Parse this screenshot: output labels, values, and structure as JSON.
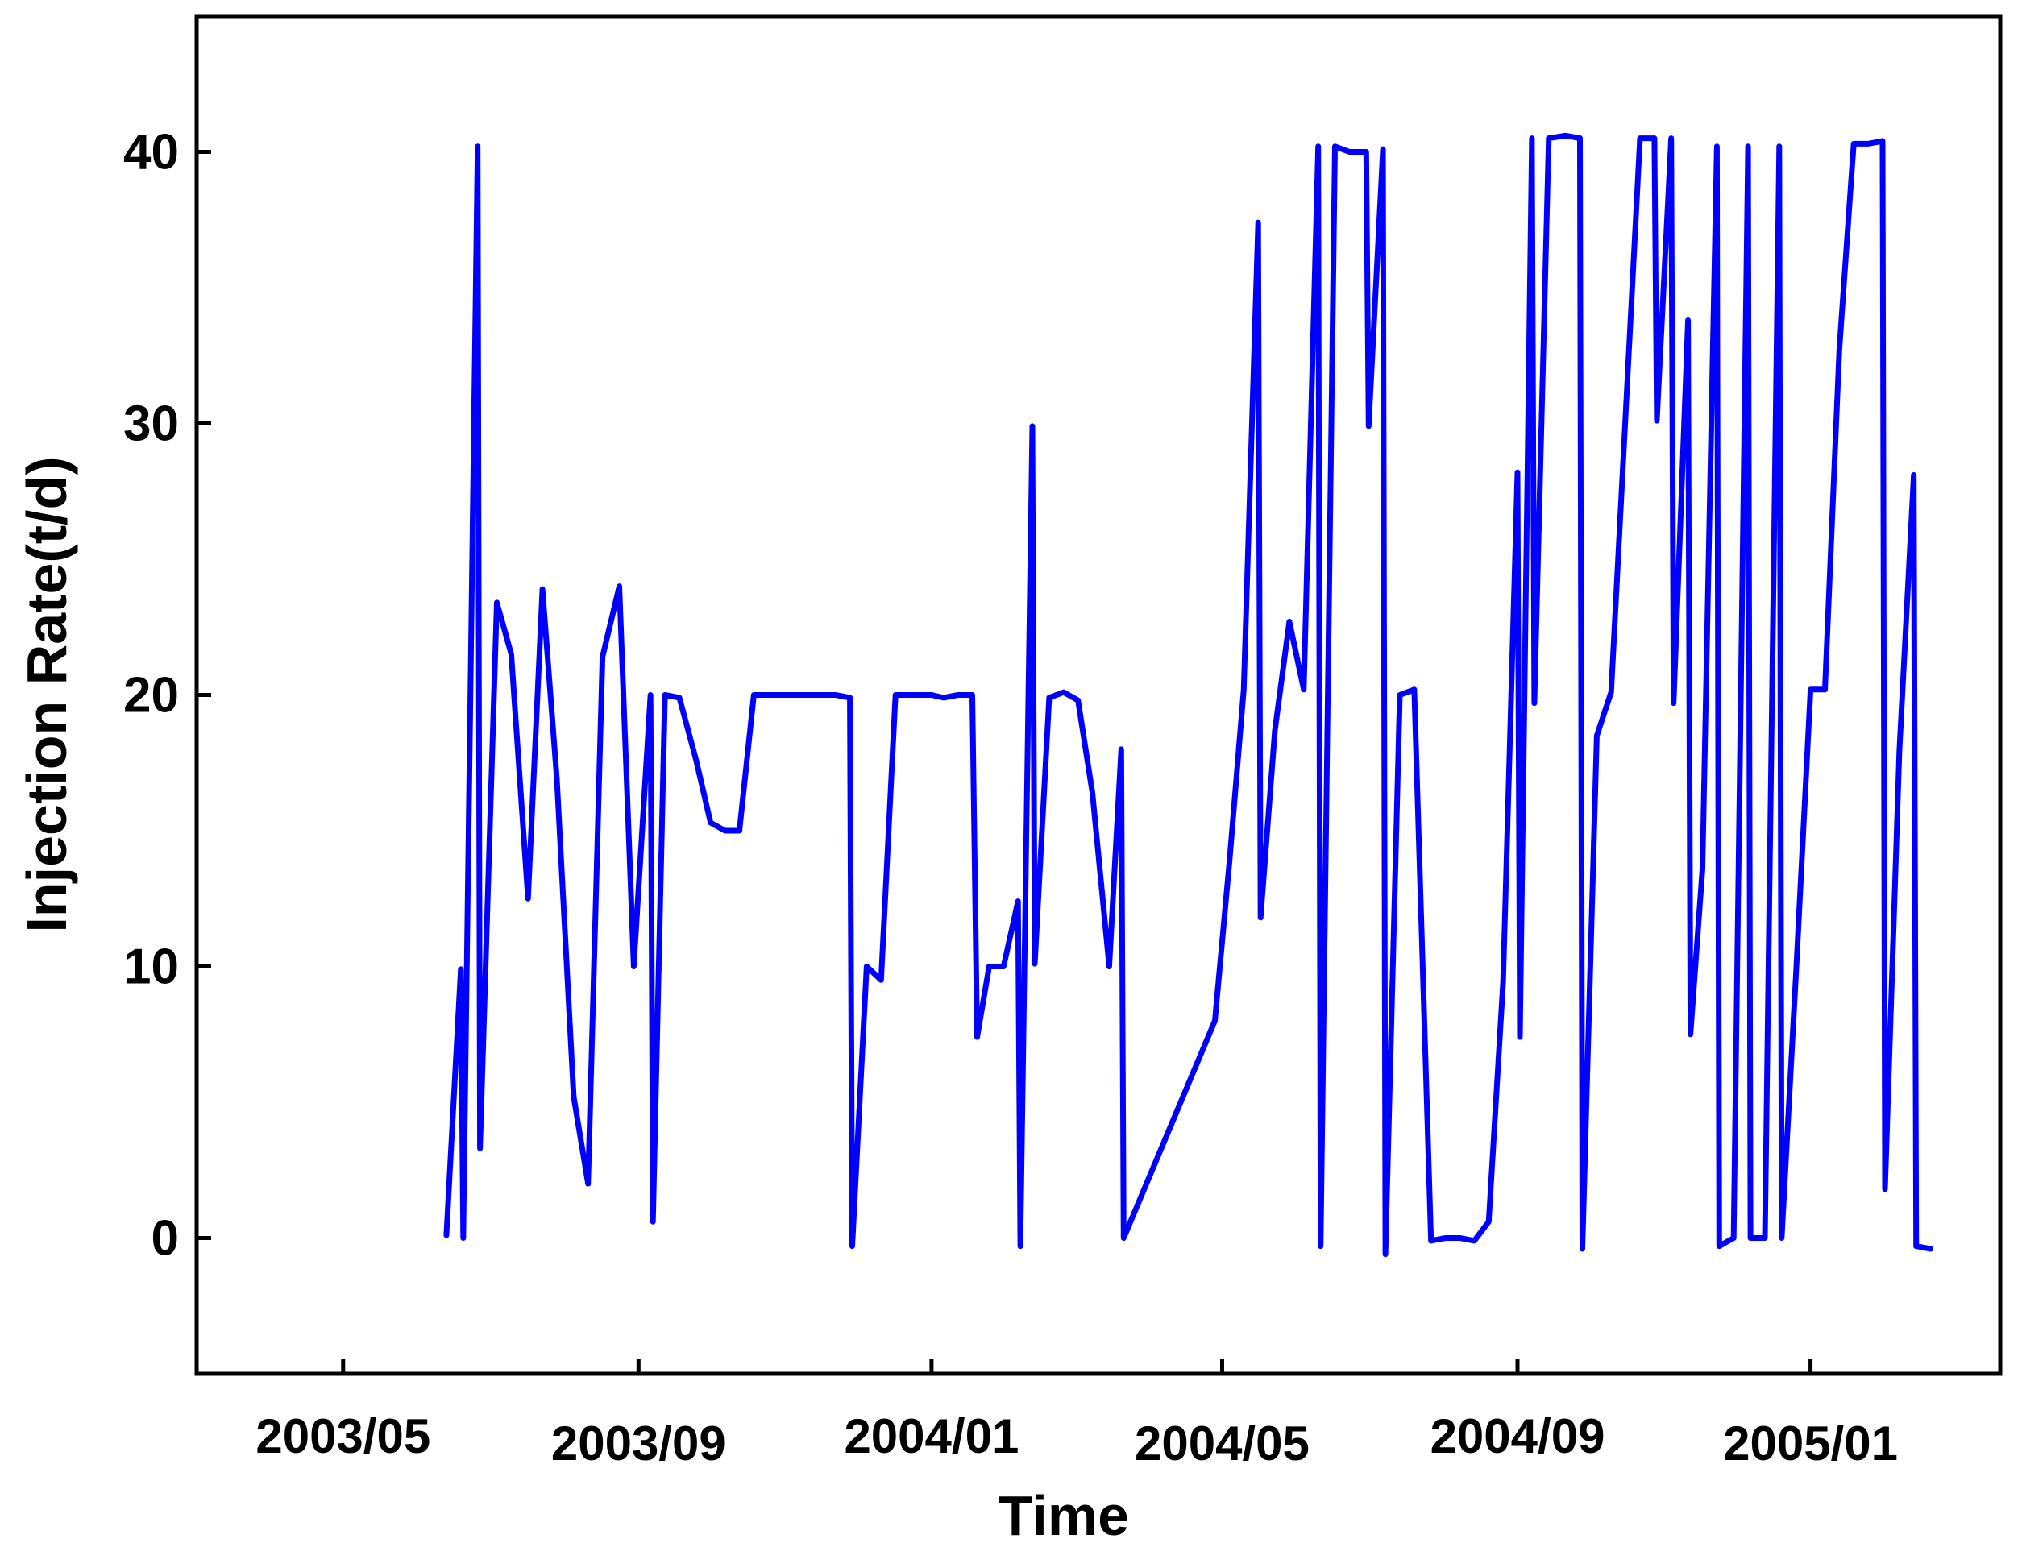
{
  "chart_data": {
    "type": "line",
    "title": "",
    "xlabel": "Time",
    "ylabel": "Injection Rate(t/d)",
    "ylim": [
      -5,
      45
    ],
    "xlim": [
      "2003-03-01",
      "2005-03-21"
    ],
    "grid": false,
    "y_ticks": [
      0,
      10,
      20,
      30,
      40
    ],
    "x_ticks": [
      {
        "date": "2003-05-01",
        "label": "2003/05"
      },
      {
        "date": "2003-09-01",
        "label": "2003/09"
      },
      {
        "date": "2004-01-01",
        "label": "2004/01"
      },
      {
        "date": "2004-05-01",
        "label": "2004/05"
      },
      {
        "date": "2004-09-01",
        "label": "2004/09"
      },
      {
        "date": "2005-01-01",
        "label": "2005/01"
      }
    ],
    "series": [
      {
        "color": "#0000ff",
        "points": [
          [
            "2003-06-13",
            0.1
          ],
          [
            "2003-06-19",
            9.9
          ],
          [
            "2003-06-20",
            0.0
          ],
          [
            "2003-06-26",
            40.2
          ],
          [
            "2003-06-27",
            3.3
          ],
          [
            "2003-07-04",
            23.4
          ],
          [
            "2003-07-10",
            21.5
          ],
          [
            "2003-07-17",
            12.5
          ],
          [
            "2003-07-23",
            23.9
          ],
          [
            "2003-07-29",
            16.9
          ],
          [
            "2003-08-05",
            5.2
          ],
          [
            "2003-08-11",
            2.0
          ],
          [
            "2003-08-17",
            21.4
          ],
          [
            "2003-08-24",
            24.0
          ],
          [
            "2003-08-30",
            10.0
          ],
          [
            "2003-09-06",
            20.0
          ],
          [
            "2003-09-07",
            0.6
          ],
          [
            "2003-09-12",
            20.0
          ],
          [
            "2003-09-18",
            19.9
          ],
          [
            "2003-09-25",
            17.6
          ],
          [
            "2003-10-01",
            15.3
          ],
          [
            "2003-10-07",
            15.0
          ],
          [
            "2003-10-13",
            15.0
          ],
          [
            "2003-10-19",
            20.0
          ],
          [
            "2003-11-22",
            20.0
          ],
          [
            "2003-11-28",
            19.9
          ],
          [
            "2003-11-29",
            -0.3
          ],
          [
            "2003-12-05",
            10.0
          ],
          [
            "2003-12-11",
            9.5
          ],
          [
            "2003-12-17",
            20.0
          ],
          [
            "2004-01-01",
            20.0
          ],
          [
            "2004-01-06",
            19.9
          ],
          [
            "2004-01-12",
            20.0
          ],
          [
            "2004-01-18",
            20.0
          ],
          [
            "2004-01-20",
            7.4
          ],
          [
            "2004-01-25",
            10.0
          ],
          [
            "2004-01-31",
            10.0
          ],
          [
            "2004-02-06",
            12.4
          ],
          [
            "2004-02-07",
            -0.3
          ],
          [
            "2004-02-12",
            29.9
          ],
          [
            "2004-02-13",
            10.1
          ],
          [
            "2004-02-19",
            19.9
          ],
          [
            "2004-02-25",
            20.1
          ],
          [
            "2004-03-02",
            19.8
          ],
          [
            "2004-03-08",
            16.4
          ],
          [
            "2004-03-15",
            10.0
          ],
          [
            "2004-03-20",
            18.0
          ],
          [
            "2004-03-21",
            0.0
          ],
          [
            "2004-04-28",
            8.0
          ],
          [
            "2004-05-04",
            13.8
          ],
          [
            "2004-05-10",
            20.2
          ],
          [
            "2004-05-16",
            37.4
          ],
          [
            "2004-05-17",
            11.8
          ],
          [
            "2004-05-23",
            18.7
          ],
          [
            "2004-05-29",
            22.7
          ],
          [
            "2004-06-04",
            20.2
          ],
          [
            "2004-06-10",
            40.2
          ],
          [
            "2004-06-11",
            -0.3
          ],
          [
            "2004-06-17",
            40.2
          ],
          [
            "2004-06-23",
            40.0
          ],
          [
            "2004-06-30",
            40.0
          ],
          [
            "2004-07-01",
            29.9
          ],
          [
            "2004-07-07",
            40.1
          ],
          [
            "2004-07-08",
            -0.6
          ],
          [
            "2004-07-14",
            20.0
          ],
          [
            "2004-07-20",
            20.2
          ],
          [
            "2004-07-27",
            -0.1
          ],
          [
            "2004-08-02",
            0.0
          ],
          [
            "2004-08-08",
            0.0
          ],
          [
            "2004-08-14",
            -0.1
          ],
          [
            "2004-08-20",
            0.6
          ],
          [
            "2004-08-26",
            9.4
          ],
          [
            "2004-09-01",
            28.2
          ],
          [
            "2004-09-02",
            7.4
          ],
          [
            "2004-09-07",
            40.5
          ],
          [
            "2004-09-08",
            19.7
          ],
          [
            "2004-09-14",
            40.5
          ],
          [
            "2004-09-21",
            40.6
          ],
          [
            "2004-09-27",
            40.5
          ],
          [
            "2004-09-28",
            -0.4
          ],
          [
            "2004-10-04",
            18.5
          ],
          [
            "2004-10-10",
            20.1
          ],
          [
            "2004-10-22",
            40.5
          ],
          [
            "2004-10-28",
            40.5
          ],
          [
            "2004-10-29",
            30.1
          ],
          [
            "2004-11-04",
            40.5
          ],
          [
            "2004-11-05",
            19.7
          ],
          [
            "2004-11-11",
            33.8
          ],
          [
            "2004-11-12",
            7.5
          ],
          [
            "2004-11-17",
            13.6
          ],
          [
            "2004-11-23",
            40.2
          ],
          [
            "2004-11-24",
            -0.3
          ],
          [
            "2004-11-30",
            0.0
          ],
          [
            "2004-12-06",
            40.2
          ],
          [
            "2004-12-07",
            0.0
          ],
          [
            "2004-12-13",
            0.0
          ],
          [
            "2004-12-19",
            40.2
          ],
          [
            "2004-12-20",
            0.0
          ],
          [
            "2004-12-26",
            9.8
          ],
          [
            "2005-01-01",
            20.2
          ],
          [
            "2005-01-07",
            20.2
          ],
          [
            "2005-01-13",
            32.7
          ],
          [
            "2005-01-19",
            40.3
          ],
          [
            "2005-01-25",
            40.3
          ],
          [
            "2005-01-31",
            40.4
          ],
          [
            "2005-02-01",
            1.8
          ],
          [
            "2005-02-07",
            17.9
          ],
          [
            "2005-02-13",
            28.1
          ],
          [
            "2005-02-14",
            -0.3
          ],
          [
            "2005-02-20",
            -0.4
          ]
        ]
      }
    ]
  }
}
